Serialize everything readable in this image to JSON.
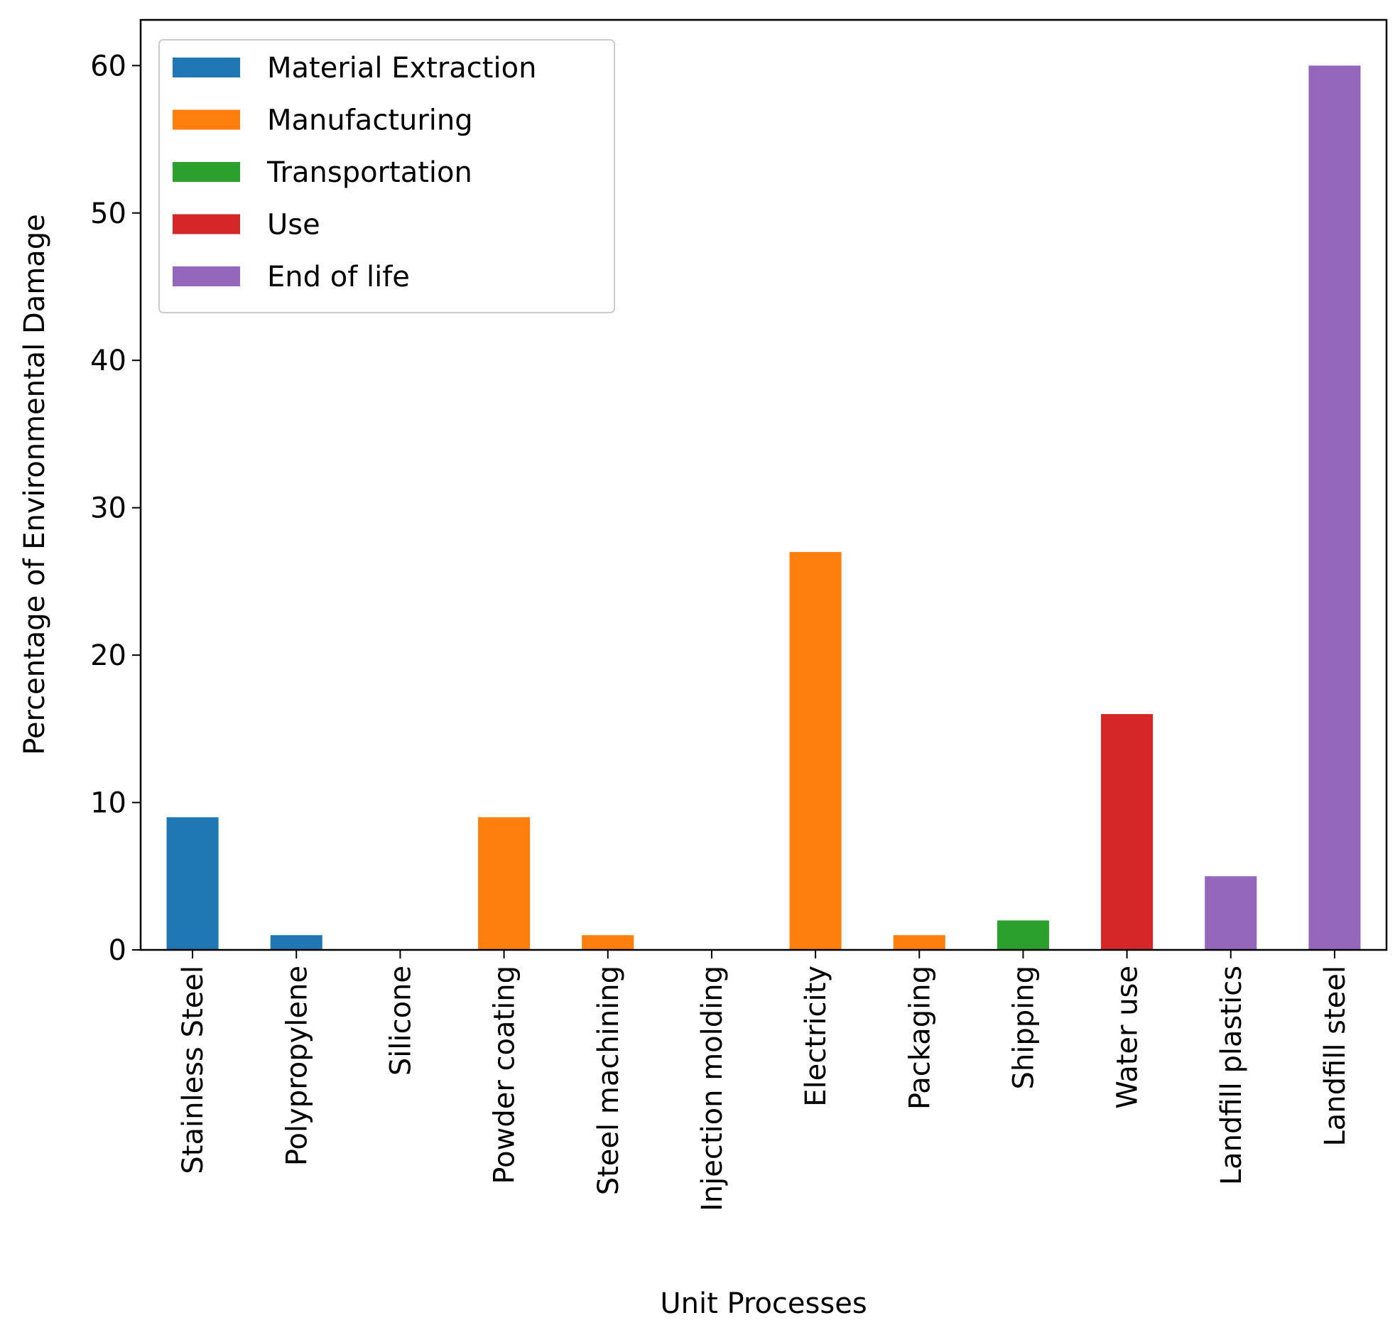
{
  "chart_data": {
    "type": "bar",
    "title": "",
    "xlabel": "Unit Processes",
    "ylabel": "Percentage of Environmental Damage",
    "categories": [
      "Stainless Steel",
      "Polypropylene",
      "Silicone",
      "Powder coating",
      "Steel machining",
      "Injection molding",
      "Electricity",
      "Packaging",
      "Shipping",
      "Water use",
      "Landfill plastics",
      "Landfill steel"
    ],
    "values": [
      9,
      1,
      0,
      9,
      1,
      0,
      27,
      1,
      2,
      16,
      5,
      60
    ],
    "stages": [
      "Material Extraction",
      "Material Extraction",
      "Material Extraction",
      "Manufacturing",
      "Manufacturing",
      "Manufacturing",
      "Manufacturing",
      "Manufacturing",
      "Transportation",
      "Use",
      "End of life",
      "End of life"
    ],
    "ylim": [
      0,
      63.1
    ],
    "yticks": [
      0,
      10,
      20,
      30,
      40,
      50,
      60
    ],
    "grid": false,
    "legend": {
      "placement": "top-left",
      "entries": [
        {
          "label": "Material Extraction",
          "color": "#1f77b4"
        },
        {
          "label": "Manufacturing",
          "color": "#ff7f0e"
        },
        {
          "label": "Transportation",
          "color": "#2ca02c"
        },
        {
          "label": "Use",
          "color": "#d62728"
        },
        {
          "label": "End of life",
          "color": "#9467bd"
        }
      ]
    }
  }
}
